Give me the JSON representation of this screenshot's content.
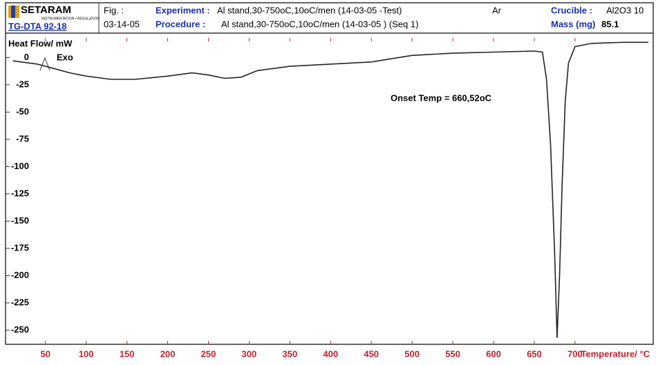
{
  "header": {
    "logo": "SETARAM",
    "logo_sub": "INSTRUMENTATION • REGULATION",
    "instrument": "TG-DTA 92-18",
    "fig_label": "Fig. :",
    "date": "03-14-05",
    "experiment_label": "Experiment :",
    "experiment": "Al stand,30-750oC,10oC/men (14-03-05 -Test)",
    "procedure_label": "Procedure :",
    "procedure": "Al stand,30-750oC,10oC/men (14-03-05 ) (Seq  1)",
    "atmosphere": "Ar",
    "crucible_label": "Crucible :",
    "crucible": "Al2O3 10",
    "mass_label": "Mass (mg)",
    "mass": "85.1"
  },
  "chart_data": {
    "type": "line",
    "y_label": "Heat Flow/ mW",
    "x_label": "Temperature/ °C",
    "exo_label": "Exo",
    "annotation": "Onset Temp = 660,52oC",
    "color": "#222222",
    "x": [
      10,
      40,
      60,
      80,
      100,
      130,
      160,
      200,
      230,
      250,
      270,
      290,
      310,
      350,
      400,
      450,
      500,
      550,
      600,
      650,
      660,
      665,
      670,
      675,
      678,
      681,
      684,
      688,
      692,
      700,
      720,
      760,
      790
    ],
    "values": [
      -3,
      -6,
      -10,
      -14,
      -17,
      -20,
      -20,
      -17,
      -14,
      -16,
      -19,
      -18,
      -12,
      -8,
      -6,
      -4,
      2,
      4,
      5,
      6,
      5,
      -20,
      -80,
      -180,
      -257,
      -200,
      -120,
      -40,
      -5,
      10,
      13,
      14,
      14
    ],
    "xlim": [
      1,
      796
    ],
    "xticks": [
      50,
      100,
      150,
      200,
      250,
      300,
      350,
      400,
      450,
      500,
      550,
      600,
      650,
      700
    ],
    "ylim": [
      -263,
      18
    ],
    "yticks": [
      0,
      -25,
      -50,
      -75,
      -100,
      -125,
      -150,
      -175,
      -200,
      -225,
      -250
    ],
    "grid": false
  }
}
